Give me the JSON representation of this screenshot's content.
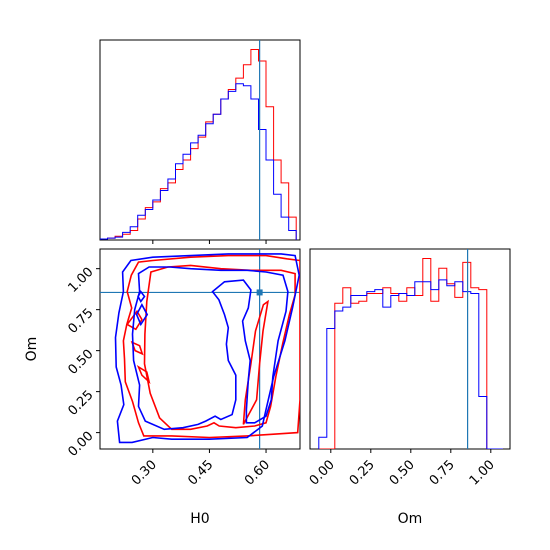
{
  "chart_data": {
    "type": "corner",
    "parameters": [
      "H0",
      "Om"
    ],
    "truths": {
      "H0": 0.583,
      "Om": 0.855
    },
    "colors": {
      "series_a": "#ff0000",
      "series_b": "#0000ff",
      "truth": "#1f77b4"
    },
    "panels": [
      {
        "id": "hist-H0",
        "type": "step-histogram",
        "xlim": [
          0.16,
          0.69
        ],
        "xticks": [
          0.3,
          0.45,
          0.6
        ],
        "bin_edges": [
          0.16,
          0.18,
          0.2,
          0.22,
          0.24,
          0.26,
          0.28,
          0.3,
          0.32,
          0.34,
          0.36,
          0.38,
          0.4,
          0.42,
          0.44,
          0.46,
          0.48,
          0.5,
          0.52,
          0.54,
          0.56,
          0.58,
          0.6,
          0.62,
          0.64,
          0.66,
          0.68
        ],
        "series": [
          {
            "color": "red",
            "values": [
              0.005,
              0.01,
              0.02,
              0.03,
              0.05,
              0.11,
              0.17,
              0.2,
              0.27,
              0.3,
              0.37,
              0.42,
              0.48,
              0.54,
              0.62,
              0.66,
              0.74,
              0.79,
              0.85,
              0.92,
              1.0,
              0.94,
              0.7,
              0.42,
              0.3,
              0.12
            ]
          },
          {
            "color": "blue",
            "values": [
              0.005,
              0.01,
              0.015,
              0.04,
              0.07,
              0.13,
              0.16,
              0.21,
              0.26,
              0.32,
              0.4,
              0.45,
              0.51,
              0.55,
              0.61,
              0.66,
              0.74,
              0.78,
              0.82,
              0.81,
              0.74,
              0.58,
              0.42,
              0.24,
              0.12,
              0.05
            ]
          }
        ]
      },
      {
        "id": "contour-H0-Om",
        "type": "contour",
        "xlabel": "H0",
        "ylabel": "Om",
        "xlim": [
          0.16,
          0.69
        ],
        "ylim": [
          -0.1,
          1.12
        ],
        "xticks": [
          0.3,
          0.45,
          0.6
        ],
        "yticks": [
          0.0,
          0.25,
          0.5,
          0.75,
          1.0
        ],
        "series": [
          {
            "color": "red",
            "contours": [
              [
                [
                  0.225,
                  0.45
                ],
                [
                  0.222,
                  0.56
                ],
                [
                  0.231,
                  0.66
                ],
                [
                  0.244,
                  0.76
                ],
                [
                  0.232,
                  0.86
                ],
                [
                  0.243,
                  0.96
                ],
                [
                  0.262,
                  1.04
                ],
                [
                  0.3,
                  1.05
                ],
                [
                  0.4,
                  1.07
                ],
                [
                  0.5,
                  1.08
                ],
                [
                  0.6,
                  1.08
                ],
                [
                  0.655,
                  1.06
                ],
                [
                  0.69,
                  1.05
                ],
                [
                  0.69,
                  0.2
                ],
                [
                  0.684,
                  0.0
                ],
                [
                  0.62,
                  -0.01
                ],
                [
                  0.55,
                  -0.02
                ],
                [
                  0.45,
                  -0.03
                ],
                [
                  0.35,
                  -0.02
                ],
                [
                  0.276,
                  -0.02
                ],
                [
                  0.262,
                  0.06
                ],
                [
                  0.246,
                  0.19
                ],
                [
                  0.227,
                  0.31
                ],
                [
                  0.225,
                  0.45
                ]
              ],
              [
                [
                  0.278,
                  0.42
                ],
                [
                  0.293,
                  0.24
                ],
                [
                  0.318,
                  0.09
                ],
                [
                  0.35,
                  0.02
                ],
                [
                  0.4,
                  0.02
                ],
                [
                  0.444,
                  0.04
                ],
                [
                  0.462,
                  0.06
                ],
                [
                  0.476,
                  0.04
                ],
                [
                  0.52,
                  0.03
                ],
                [
                  0.57,
                  0.04
                ],
                [
                  0.6,
                  0.06
                ],
                [
                  0.612,
                  0.16
                ],
                [
                  0.626,
                  0.34
                ],
                [
                  0.644,
                  0.54
                ],
                [
                  0.662,
                  0.72
                ],
                [
                  0.677,
                  0.84
                ],
                [
                  0.677,
                  0.97
                ],
                [
                  0.64,
                  0.99
                ],
                [
                  0.56,
                  0.99
                ],
                [
                  0.48,
                  1.0
                ],
                [
                  0.4,
                  1.02
                ],
                [
                  0.34,
                  1.01
                ],
                [
                  0.295,
                  0.98
                ],
                [
                  0.284,
                  0.8
                ],
                [
                  0.279,
                  0.6
                ],
                [
                  0.278,
                  0.42
                ]
              ],
              [
                [
                  0.54,
                  0.05
                ],
                [
                  0.575,
                  0.2
                ],
                [
                  0.583,
                  0.42
                ],
                [
                  0.592,
                  0.62
                ],
                [
                  0.605,
                  0.8
                ],
                [
                  0.593,
                  0.78
                ],
                [
                  0.572,
                  0.62
                ],
                [
                  0.56,
                  0.42
                ],
                [
                  0.545,
                  0.2
                ],
                [
                  0.54,
                  0.05
                ]
              ],
              [
                [
                  0.232,
                  0.66
                ],
                [
                  0.258,
                  0.74
                ],
                [
                  0.271,
                  0.69
                ],
                [
                  0.255,
                  0.63
                ],
                [
                  0.232,
                  0.66
                ]
              ],
              [
                [
                  0.245,
                  0.55
                ],
                [
                  0.253,
                  0.5
                ],
                [
                  0.272,
                  0.48
                ],
                [
                  0.265,
                  0.53
                ],
                [
                  0.245,
                  0.55
                ]
              ],
              [
                [
                  0.262,
                  0.4
                ],
                [
                  0.271,
                  0.35
                ],
                [
                  0.29,
                  0.31
                ],
                [
                  0.284,
                  0.37
                ],
                [
                  0.262,
                  0.4
                ]
              ]
            ]
          },
          {
            "color": "blue",
            "contours": [
              [
                [
                  0.203,
                  0.4
                ],
                [
                  0.201,
                  0.58
                ],
                [
                  0.21,
                  0.73
                ],
                [
                  0.222,
                  0.86
                ],
                [
                  0.22,
                  0.98
                ],
                [
                  0.242,
                  1.05
                ],
                [
                  0.3,
                  1.07
                ],
                [
                  0.4,
                  1.08
                ],
                [
                  0.5,
                  1.09
                ],
                [
                  0.6,
                  1.09
                ],
                [
                  0.64,
                  1.09
                ],
                [
                  0.677,
                  1.08
                ],
                [
                  0.688,
                  0.96
                ],
                [
                  0.67,
                  0.76
                ],
                [
                  0.65,
                  0.56
                ],
                [
                  0.62,
                  0.34
                ],
                [
                  0.6,
                  0.14
                ],
                [
                  0.59,
                  0.04
                ],
                [
                  0.55,
                  -0.03
                ],
                [
                  0.45,
                  -0.04
                ],
                [
                  0.35,
                  -0.04
                ],
                [
                  0.3,
                  -0.03
                ],
                [
                  0.245,
                  -0.06
                ],
                [
                  0.212,
                  -0.06
                ],
                [
                  0.206,
                  0.07
                ],
                [
                  0.223,
                  0.17
                ],
                [
                  0.216,
                  0.29
                ],
                [
                  0.203,
                  0.4
                ]
              ],
              [
                [
                  0.249,
                  0.44
                ],
                [
                  0.265,
                  0.29
                ],
                [
                  0.262,
                  0.16
                ],
                [
                  0.28,
                  0.07
                ],
                [
                  0.33,
                  0.02
                ],
                [
                  0.38,
                  0.03
                ],
                [
                  0.42,
                  0.05
                ],
                [
                  0.44,
                  0.07
                ],
                [
                  0.465,
                  0.1
                ],
                [
                  0.48,
                  0.08
                ],
                [
                  0.51,
                  0.11
                ],
                [
                  0.52,
                  0.2
                ],
                [
                  0.52,
                  0.35
                ],
                [
                  0.5,
                  0.44
                ],
                [
                  0.495,
                  0.54
                ],
                [
                  0.5,
                  0.64
                ],
                [
                  0.49,
                  0.72
                ],
                [
                  0.475,
                  0.81
                ],
                [
                  0.458,
                  0.86
                ],
                [
                  0.49,
                  0.92
                ],
                [
                  0.54,
                  0.93
                ],
                [
                  0.56,
                  0.87
                ],
                [
                  0.553,
                  0.76
                ],
                [
                  0.538,
                  0.68
                ],
                [
                  0.545,
                  0.56
                ],
                [
                  0.558,
                  0.44
                ],
                [
                  0.553,
                  0.32
                ],
                [
                  0.548,
                  0.14
                ],
                [
                  0.548,
                  0.06
                ],
                [
                  0.57,
                  0.06
                ],
                [
                  0.6,
                  0.1
                ],
                [
                  0.614,
                  0.2
                ],
                [
                  0.618,
                  0.34
                ],
                [
                  0.632,
                  0.56
                ],
                [
                  0.653,
                  0.74
                ],
                [
                  0.658,
                  0.86
                ],
                [
                  0.645,
                  0.96
                ],
                [
                  0.6,
                  0.98
                ],
                [
                  0.55,
                  0.99
                ],
                [
                  0.48,
                  0.99
                ],
                [
                  0.4,
                  1.0
                ],
                [
                  0.345,
                  1.01
                ],
                [
                  0.29,
                  1.01
                ],
                [
                  0.262,
                  0.97
                ],
                [
                  0.265,
                  0.86
                ],
                [
                  0.252,
                  0.75
                ],
                [
                  0.246,
                  0.6
                ],
                [
                  0.249,
                  0.44
                ]
              ],
              [
                [
                  0.257,
                  0.72
                ],
                [
                  0.271,
                  0.78
                ],
                [
                  0.285,
                  0.72
                ],
                [
                  0.268,
                  0.66
                ],
                [
                  0.257,
                  0.72
                ]
              ],
              [
                [
                  0.261,
                  0.83
                ],
                [
                  0.268,
                  0.86
                ],
                [
                  0.278,
                  0.83
                ],
                [
                  0.268,
                  0.8
                ],
                [
                  0.261,
                  0.83
                ]
              ]
            ]
          }
        ]
      },
      {
        "id": "hist-Om",
        "type": "step-histogram",
        "xlabel": "Om",
        "xlim": [
          -0.13,
          1.12
        ],
        "xticks": [
          0.0,
          0.25,
          0.5,
          0.75,
          1.0
        ],
        "bin_edges": [
          -0.075,
          -0.025,
          0.025,
          0.075,
          0.125,
          0.175,
          0.225,
          0.275,
          0.325,
          0.375,
          0.425,
          0.475,
          0.525,
          0.575,
          0.625,
          0.675,
          0.725,
          0.775,
          0.825,
          0.875,
          0.925,
          0.975,
          1.025,
          1.075
        ],
        "series": [
          {
            "color": "red",
            "values": [
              0.0,
              0.0,
              0.75,
              0.83,
              0.75,
              0.76,
              0.8,
              0.8,
              0.83,
              0.8,
              0.76,
              0.83,
              0.79,
              0.98,
              0.76,
              0.93,
              0.85,
              0.78,
              0.96,
              0.83,
              0.82,
              0.0,
              0.0
            ]
          },
          {
            "color": "blue",
            "values": [
              0.06,
              0.62,
              0.71,
              0.73,
              0.79,
              0.79,
              0.81,
              0.82,
              0.73,
              0.79,
              0.8,
              0.79,
              0.86,
              0.86,
              0.82,
              0.87,
              0.84,
              0.86,
              0.81,
              0.8,
              0.27,
              0.0,
              0.0
            ]
          }
        ]
      }
    ]
  }
}
